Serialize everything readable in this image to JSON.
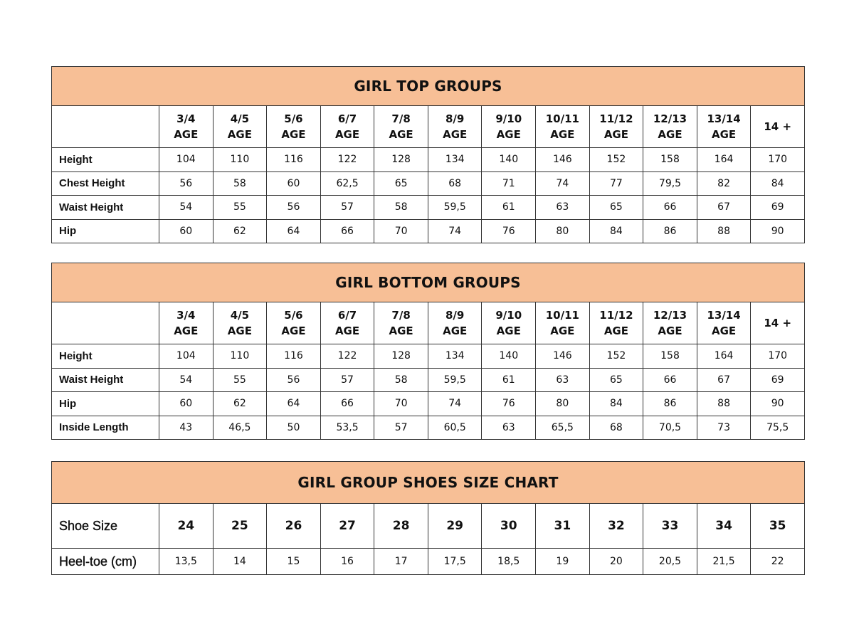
{
  "colors": {
    "header_fill": "#f7bf96",
    "border": "#333333"
  },
  "tables": [
    {
      "title": "GIRL TOP GROUPS",
      "columns": [
        [
          "3/4",
          "AGE"
        ],
        [
          "4/5",
          "AGE"
        ],
        [
          "5/6",
          "AGE"
        ],
        [
          "6/7",
          "AGE"
        ],
        [
          "7/8",
          "AGE"
        ],
        [
          "8/9",
          "AGE"
        ],
        [
          "9/10",
          "AGE"
        ],
        [
          "10/11",
          "AGE"
        ],
        [
          "11/12",
          "AGE"
        ],
        [
          "12/13",
          "AGE"
        ],
        [
          "13/14",
          "AGE"
        ],
        [
          "14 +"
        ]
      ],
      "rows": [
        {
          "label": "Height",
          "values": [
            "104",
            "110",
            "116",
            "122",
            "128",
            "134",
            "140",
            "146",
            "152",
            "158",
            "164",
            "170"
          ]
        },
        {
          "label": "Chest Height",
          "values": [
            "56",
            "58",
            "60",
            "62,5",
            "65",
            "68",
            "71",
            "74",
            "77",
            "79,5",
            "82",
            "84"
          ]
        },
        {
          "label": "Waist Height",
          "values": [
            "54",
            "55",
            "56",
            "57",
            "58",
            "59,5",
            "61",
            "63",
            "65",
            "66",
            "67",
            "69"
          ]
        },
        {
          "label": "Hip",
          "values": [
            "60",
            "62",
            "64",
            "66",
            "70",
            "74",
            "76",
            "80",
            "84",
            "86",
            "88",
            "90"
          ]
        }
      ]
    },
    {
      "title": "GIRL BOTTOM GROUPS",
      "columns": [
        [
          "3/4",
          "AGE"
        ],
        [
          "4/5",
          "AGE"
        ],
        [
          "5/6",
          "AGE"
        ],
        [
          "6/7",
          "AGE"
        ],
        [
          "7/8",
          "AGE"
        ],
        [
          "8/9",
          "AGE"
        ],
        [
          "9/10",
          "AGE"
        ],
        [
          "10/11",
          "AGE"
        ],
        [
          "11/12",
          "AGE"
        ],
        [
          "12/13",
          "AGE"
        ],
        [
          "13/14",
          "AGE"
        ],
        [
          "14 +"
        ]
      ],
      "rows": [
        {
          "label": "Height",
          "values": [
            "104",
            "110",
            "116",
            "122",
            "128",
            "134",
            "140",
            "146",
            "152",
            "158",
            "164",
            "170"
          ]
        },
        {
          "label": "Waist Height",
          "values": [
            "54",
            "55",
            "56",
            "57",
            "58",
            "59,5",
            "61",
            "63",
            "65",
            "66",
            "67",
            "69"
          ]
        },
        {
          "label": "Hip",
          "values": [
            "60",
            "62",
            "64",
            "66",
            "70",
            "74",
            "76",
            "80",
            "84",
            "86",
            "88",
            "90"
          ]
        },
        {
          "label": "Inside Length",
          "values": [
            "43",
            "46,5",
            "50",
            "53,5",
            "57",
            "60,5",
            "63",
            "65,5",
            "68",
            "70,5",
            "73",
            "75,5"
          ]
        }
      ]
    },
    {
      "title": "GIRL GROUP SHOES SIZE CHART",
      "header_label": "Shoe Size",
      "columns": [
        [
          "24"
        ],
        [
          "25"
        ],
        [
          "26"
        ],
        [
          "27"
        ],
        [
          "28"
        ],
        [
          "29"
        ],
        [
          "30"
        ],
        [
          "31"
        ],
        [
          "32"
        ],
        [
          "33"
        ],
        [
          "34"
        ],
        [
          "35"
        ]
      ],
      "rows": [
        {
          "label": "Heel-toe (cm)",
          "values": [
            "13,5",
            "14",
            "15",
            "16",
            "17",
            "17,5",
            "18,5",
            "19",
            "20",
            "20,5",
            "21,5",
            "22"
          ]
        }
      ]
    }
  ]
}
